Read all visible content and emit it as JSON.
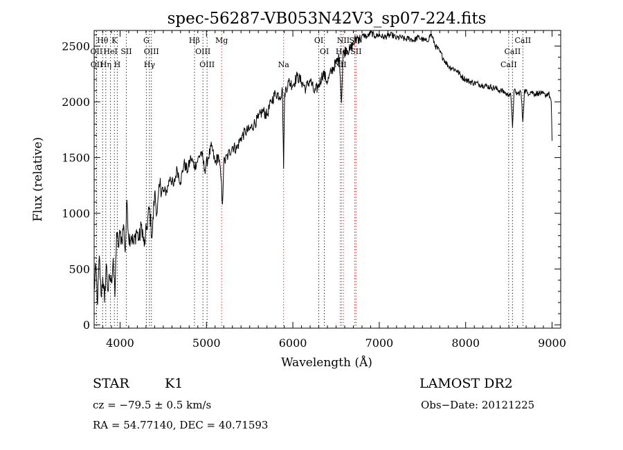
{
  "chart_data": {
    "type": "line",
    "title": "spec-56287-VB053N42V3_sp07-224.fits",
    "xlabel": "Wavelength (Å)",
    "ylabel": "Flux (relative)",
    "xlim": [
      3700,
      9100
    ],
    "ylim": [
      -30,
      2640
    ],
    "xticks": [
      4000,
      5000,
      6000,
      7000,
      8000,
      9000
    ],
    "yticks": [
      0,
      500,
      1000,
      1500,
      2000,
      2500
    ],
    "grid": false,
    "line_color": "#000000",
    "marker_color": "#cc0000",
    "series": [
      {
        "x": [
          3700,
          3720,
          3740,
          3760,
          3780,
          3800,
          3820,
          3840,
          3860,
          3880,
          3900,
          3920,
          3940,
          3960,
          3980,
          4000,
          4020,
          4040,
          4060,
          4080,
          4100,
          4130,
          4160,
          4190,
          4220,
          4250,
          4280,
          4310,
          4340,
          4370,
          4400,
          4430,
          4460,
          4500,
          4540,
          4580,
          4620,
          4660,
          4700,
          4740,
          4780,
          4820,
          4860,
          4900,
          4940,
          4980,
          5020,
          5060,
          5100,
          5140,
          5170,
          5185,
          5200,
          5250,
          5300,
          5350,
          5400,
          5450,
          5500,
          5550,
          5600,
          5650,
          5700,
          5750,
          5800,
          5850,
          5880,
          5893,
          5905,
          5950,
          6000,
          6050,
          6100,
          6150,
          6200,
          6250,
          6300,
          6350,
          6400,
          6450,
          6500,
          6540,
          6563,
          6580,
          6620,
          6660,
          6700,
          6740,
          6780,
          6820,
          6860,
          6900,
          6950,
          7000,
          7050,
          7100,
          7150,
          7200,
          7250,
          7300,
          7350,
          7400,
          7450,
          7500,
          7550,
          7600,
          7650,
          7700,
          7750,
          7800,
          7850,
          7900,
          7950,
          8000,
          8050,
          8100,
          8150,
          8200,
          8250,
          8300,
          8350,
          8400,
          8450,
          8480,
          8500,
          8520,
          8542,
          8560,
          8580,
          8600,
          8640,
          8662,
          8680,
          8720,
          8760,
          8800,
          8840,
          8880,
          8920,
          8960,
          8990,
          9000
        ],
        "y": [
          300,
          520,
          180,
          620,
          260,
          430,
          200,
          550,
          300,
          420,
          380,
          600,
          250,
          830,
          700,
          820,
          760,
          900,
          650,
          1120,
          780,
          800,
          720,
          850,
          760,
          900,
          700,
          880,
          1050,
          780,
          1180,
          1000,
          1260,
          1190,
          1200,
          1330,
          1240,
          1400,
          1280,
          1450,
          1380,
          1500,
          1420,
          1480,
          1550,
          1390,
          1500,
          1600,
          1450,
          1520,
          1300,
          1080,
          1450,
          1520,
          1600,
          1580,
          1680,
          1730,
          1750,
          1800,
          1850,
          1920,
          1880,
          2000,
          2080,
          2050,
          2100,
          1400,
          2080,
          2180,
          2150,
          2230,
          2180,
          2120,
          2200,
          2080,
          2150,
          2260,
          2180,
          2280,
          2350,
          2400,
          1990,
          2420,
          2480,
          2460,
          2520,
          2580,
          2560,
          2600,
          2580,
          2620,
          2590,
          2600,
          2580,
          2590,
          2600,
          2570,
          2580,
          2560,
          2570,
          2550,
          2580,
          2560,
          2540,
          2610,
          2500,
          2450,
          2380,
          2320,
          2300,
          2280,
          2230,
          2200,
          2180,
          2170,
          2160,
          2150,
          2140,
          2130,
          2120,
          2100,
          2090,
          2060,
          2070,
          2080,
          1770,
          2100,
          2080,
          2070,
          2090,
          1820,
          2100,
          2080,
          2090,
          2070,
          2080,
          2070,
          2060,
          2080,
          2000,
          1650
        ]
      }
    ],
    "line_markers": [
      {
        "label": "Hθ",
        "x": 3798,
        "row": 1,
        "color": "#000000"
      },
      {
        "label": "K",
        "x": 3934,
        "row": 1,
        "color": "#000000"
      },
      {
        "label": "G",
        "x": 4304,
        "row": 1,
        "color": "#000000"
      },
      {
        "label": "Hβ",
        "x": 4861,
        "row": 1,
        "color": "#000000"
      },
      {
        "label": "Mg",
        "x": 5175,
        "row": 1,
        "color": "#cc0000"
      },
      {
        "label": "OI",
        "x": 6300,
        "row": 1,
        "color": "#000000"
      },
      {
        "label": "NII",
        "x": 6584,
        "row": 1,
        "color": "#cc0000"
      },
      {
        "label": "SII",
        "x": 6717,
        "row": 1,
        "color": "#cc0000"
      },
      {
        "label": "CaII",
        "x": 8662,
        "row": 1,
        "color": "#000000"
      },
      {
        "label": "OII",
        "x": 3727,
        "row": 2,
        "color": "#000000"
      },
      {
        "label": "HeI",
        "x": 3889,
        "row": 2,
        "color": "#000000"
      },
      {
        "label": "SII",
        "x": 4072,
        "row": 2,
        "color": "#000000"
      },
      {
        "label": "OIII",
        "x": 4363,
        "row": 2,
        "color": "#000000"
      },
      {
        "label": "OIII",
        "x": 4959,
        "row": 2,
        "color": "#000000"
      },
      {
        "label": "OI",
        "x": 6364,
        "row": 2,
        "color": "#000000"
      },
      {
        "label": "Hα",
        "x": 6563,
        "row": 2,
        "color": "#cc0000"
      },
      {
        "label": "SII",
        "x": 6731,
        "row": 2,
        "color": "#cc0000"
      },
      {
        "label": "CaII",
        "x": 8542,
        "row": 2,
        "color": "#000000"
      },
      {
        "label": "OII",
        "x": 3729,
        "row": 3,
        "color": "#000000"
      },
      {
        "label": "Hη",
        "x": 3835,
        "row": 3,
        "color": "#000000"
      },
      {
        "label": "H",
        "x": 3968,
        "row": 3,
        "color": "#000000"
      },
      {
        "label": "Hγ",
        "x": 4340,
        "row": 3,
        "color": "#000000"
      },
      {
        "label": "OIII",
        "x": 5007,
        "row": 3,
        "color": "#000000"
      },
      {
        "label": "Na",
        "x": 5893,
        "row": 3,
        "color": "#cc0000"
      },
      {
        "label": "NII",
        "x": 6548,
        "row": 3,
        "color": "#cc0000"
      },
      {
        "label": "CaII",
        "x": 8498,
        "row": 3,
        "color": "#000000"
      }
    ]
  },
  "info": {
    "class_label": "STAR",
    "subclass": "K1",
    "survey": "LAMOST DR2",
    "cz": "cz = −79.5 ± 0.5 km/s",
    "obs_date": "Obs−Date: 20121225",
    "radec": "RA =  54.77140, DEC =  40.71593"
  }
}
